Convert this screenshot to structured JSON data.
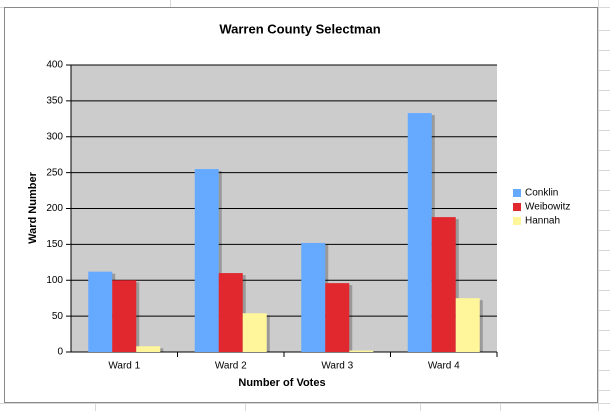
{
  "chart_data": {
    "type": "bar",
    "title": "Warren County Selectman",
    "x_label": "Number of Votes",
    "y_label": "Ward Number",
    "categories": [
      "Ward 1",
      "Ward 2",
      "Ward 3",
      "Ward 4"
    ],
    "series": [
      {
        "name": "Conklin",
        "color": "#66aaff",
        "values": [
          112,
          255,
          152,
          333
        ]
      },
      {
        "name": "Weibowitz",
        "color": "#e0282e",
        "values": [
          100,
          110,
          96,
          188
        ]
      },
      {
        "name": "Hannah",
        "color": "#fff59a",
        "values": [
          8,
          54,
          2,
          75
        ]
      }
    ],
    "ylim": [
      0,
      400
    ],
    "yticks": [
      0,
      50,
      100,
      150,
      200,
      250,
      300,
      350,
      400
    ],
    "grid": true,
    "legend": "right"
  }
}
